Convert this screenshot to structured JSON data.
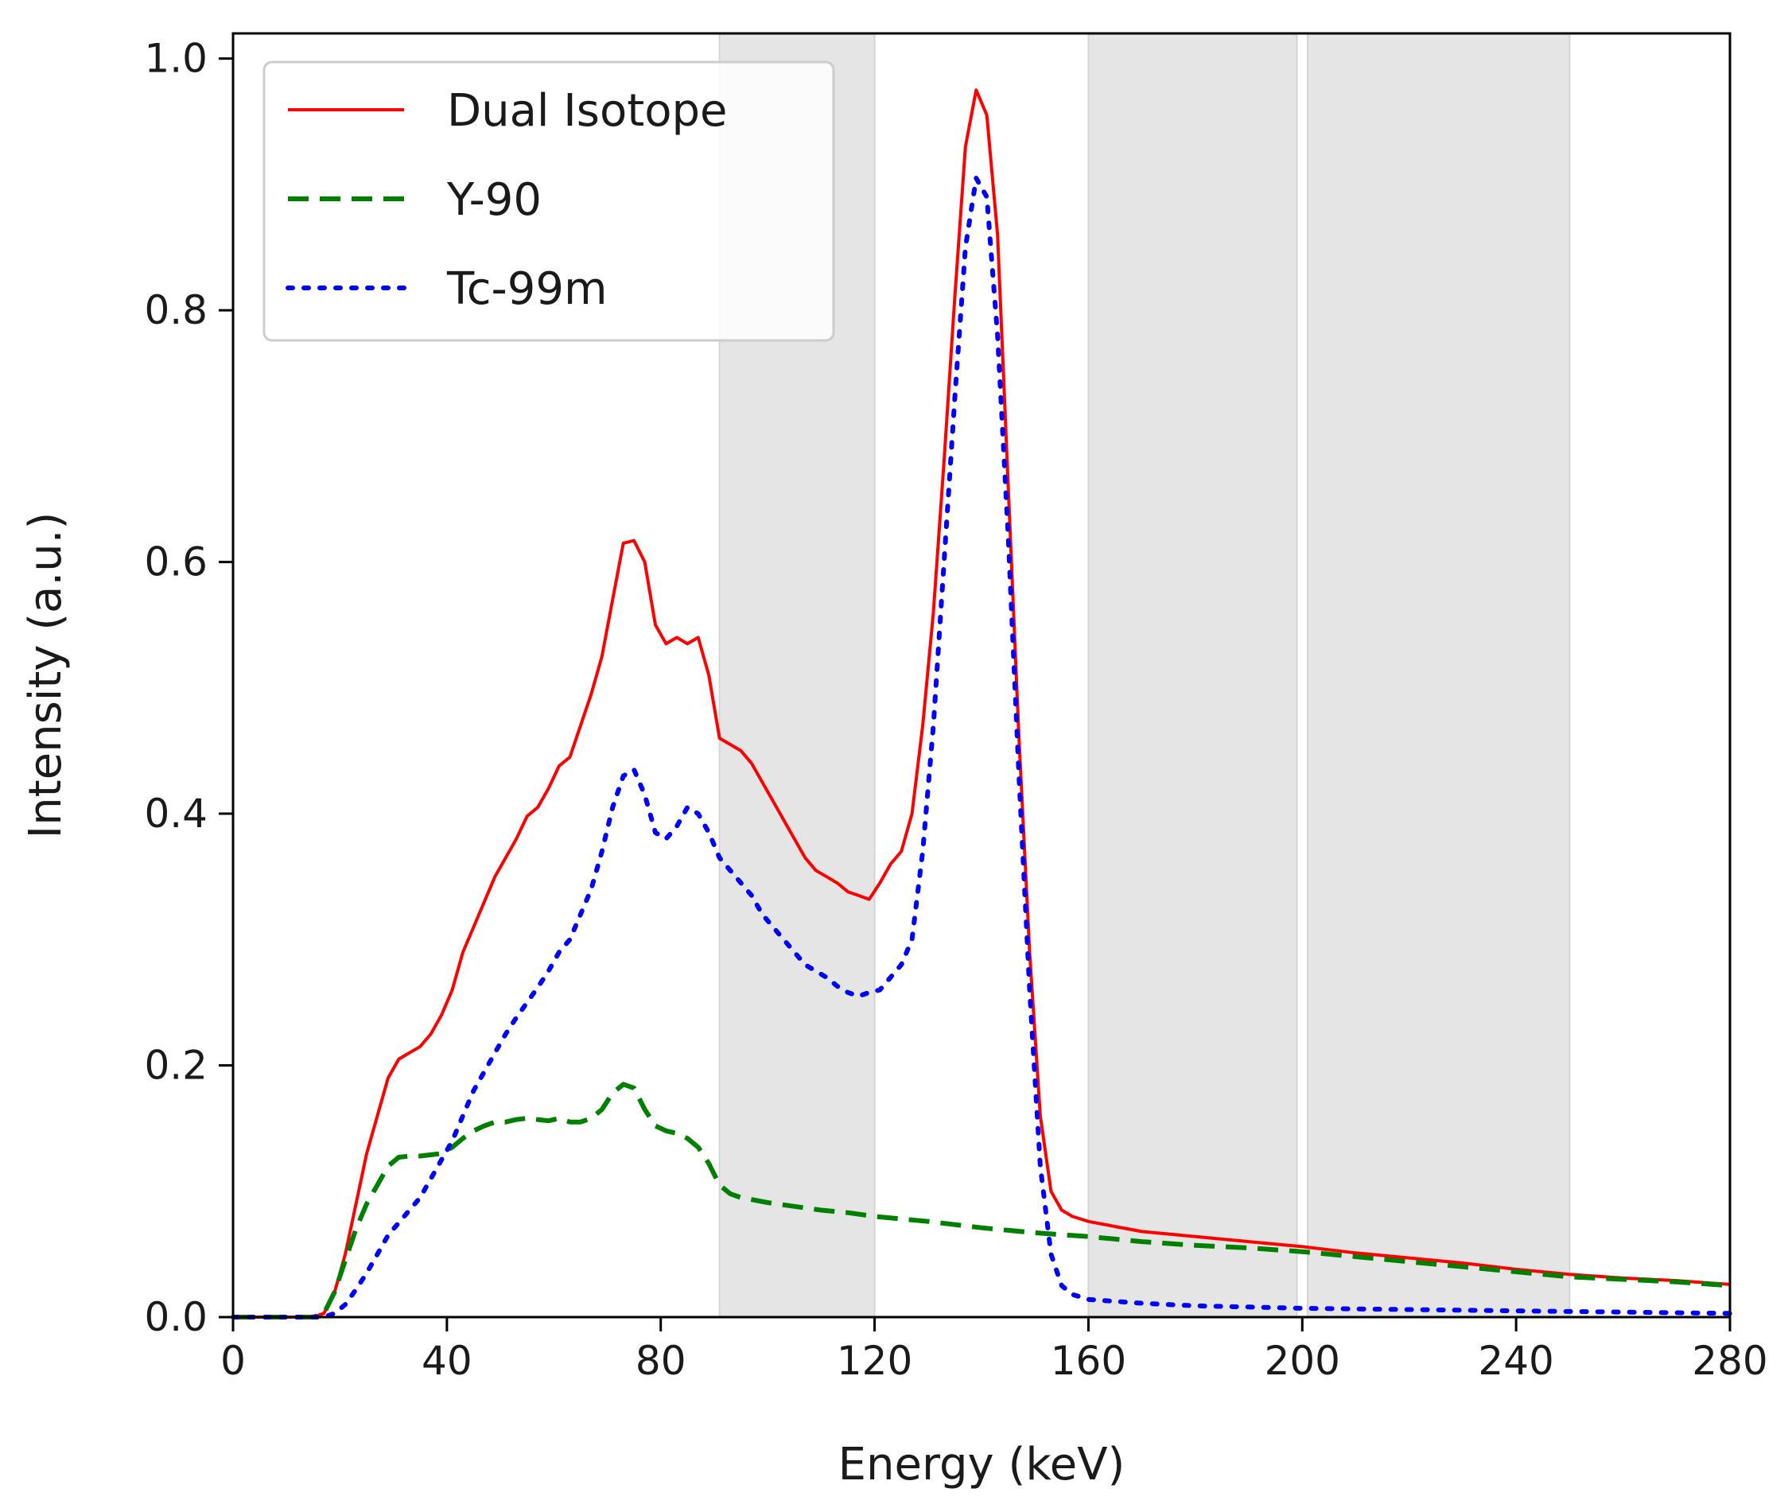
{
  "chart_data": {
    "type": "line",
    "title": "",
    "xlabel": "Energy (keV)",
    "ylabel": "Intensity (a.u.)",
    "xlim": [
      0,
      280
    ],
    "ylim": [
      0,
      1.02
    ],
    "xticks": [
      0,
      40,
      80,
      120,
      160,
      200,
      240,
      280
    ],
    "xtick_labels": [
      "0",
      "40",
      "80",
      "120",
      "160",
      "200",
      "240",
      "280"
    ],
    "yticks": [
      0.0,
      0.2,
      0.4,
      0.6,
      0.8,
      1.0
    ],
    "ytick_labels": [
      "0.0",
      "0.2",
      "0.4",
      "0.6",
      "0.8",
      "1.0"
    ],
    "grid": false,
    "legend_position": "top-left",
    "shaded_bands": [
      {
        "x0": 91,
        "x1": 120
      },
      {
        "x0": 160,
        "x1": 199
      },
      {
        "x0": 201,
        "x1": 250
      }
    ],
    "series": [
      {
        "name": "Dual Isotope",
        "color": "#ff0000",
        "style": "solid",
        "points": [
          [
            0,
            0
          ],
          [
            15,
            0
          ],
          [
            17,
            0.003
          ],
          [
            19,
            0.02
          ],
          [
            21,
            0.05
          ],
          [
            23,
            0.09
          ],
          [
            25,
            0.13
          ],
          [
            27,
            0.16
          ],
          [
            29,
            0.19
          ],
          [
            31,
            0.205
          ],
          [
            33,
            0.21
          ],
          [
            35,
            0.215
          ],
          [
            37,
            0.225
          ],
          [
            39,
            0.24
          ],
          [
            41,
            0.26
          ],
          [
            43,
            0.29
          ],
          [
            45,
            0.31
          ],
          [
            47,
            0.33
          ],
          [
            49,
            0.35
          ],
          [
            51,
            0.365
          ],
          [
            53,
            0.38
          ],
          [
            55,
            0.398
          ],
          [
            57,
            0.405
          ],
          [
            59,
            0.42
          ],
          [
            61,
            0.438
          ],
          [
            63,
            0.445
          ],
          [
            65,
            0.47
          ],
          [
            67,
            0.495
          ],
          [
            69,
            0.525
          ],
          [
            71,
            0.57
          ],
          [
            73,
            0.615
          ],
          [
            75,
            0.617
          ],
          [
            77,
            0.6
          ],
          [
            79,
            0.55
          ],
          [
            81,
            0.535
          ],
          [
            83,
            0.54
          ],
          [
            85,
            0.535
          ],
          [
            87,
            0.54
          ],
          [
            89,
            0.51
          ],
          [
            91,
            0.46
          ],
          [
            93,
            0.455
          ],
          [
            95,
            0.45
          ],
          [
            97,
            0.44
          ],
          [
            99,
            0.425
          ],
          [
            101,
            0.41
          ],
          [
            103,
            0.395
          ],
          [
            105,
            0.38
          ],
          [
            107,
            0.365
          ],
          [
            109,
            0.355
          ],
          [
            111,
            0.35
          ],
          [
            113,
            0.345
          ],
          [
            115,
            0.338
          ],
          [
            117,
            0.335
          ],
          [
            119,
            0.332
          ],
          [
            121,
            0.345
          ],
          [
            123,
            0.36
          ],
          [
            125,
            0.37
          ],
          [
            127,
            0.4
          ],
          [
            129,
            0.47
          ],
          [
            131,
            0.56
          ],
          [
            133,
            0.68
          ],
          [
            135,
            0.81
          ],
          [
            137,
            0.93
          ],
          [
            139,
            0.975
          ],
          [
            141,
            0.955
          ],
          [
            143,
            0.86
          ],
          [
            145,
            0.66
          ],
          [
            147,
            0.46
          ],
          [
            149,
            0.29
          ],
          [
            151,
            0.16
          ],
          [
            153,
            0.1
          ],
          [
            155,
            0.085
          ],
          [
            157,
            0.08
          ],
          [
            160,
            0.076
          ],
          [
            165,
            0.072
          ],
          [
            170,
            0.068
          ],
          [
            180,
            0.064
          ],
          [
            190,
            0.06
          ],
          [
            200,
            0.056
          ],
          [
            210,
            0.051
          ],
          [
            220,
            0.047
          ],
          [
            230,
            0.043
          ],
          [
            240,
            0.038
          ],
          [
            250,
            0.034
          ],
          [
            260,
            0.031
          ],
          [
            270,
            0.029
          ],
          [
            280,
            0.026
          ]
        ]
      },
      {
        "name": "Y-90",
        "color": "#008000",
        "style": "dashed",
        "points": [
          [
            0,
            0
          ],
          [
            15,
            0
          ],
          [
            17,
            0.003
          ],
          [
            19,
            0.02
          ],
          [
            21,
            0.045
          ],
          [
            23,
            0.07
          ],
          [
            25,
            0.09
          ],
          [
            27,
            0.105
          ],
          [
            29,
            0.12
          ],
          [
            31,
            0.127
          ],
          [
            33,
            0.128
          ],
          [
            35,
            0.128
          ],
          [
            37,
            0.129
          ],
          [
            39,
            0.13
          ],
          [
            41,
            0.135
          ],
          [
            43,
            0.142
          ],
          [
            45,
            0.148
          ],
          [
            47,
            0.152
          ],
          [
            49,
            0.155
          ],
          [
            51,
            0.155
          ],
          [
            53,
            0.157
          ],
          [
            55,
            0.158
          ],
          [
            57,
            0.157
          ],
          [
            59,
            0.156
          ],
          [
            61,
            0.158
          ],
          [
            63,
            0.155
          ],
          [
            65,
            0.155
          ],
          [
            67,
            0.158
          ],
          [
            69,
            0.165
          ],
          [
            71,
            0.178
          ],
          [
            73,
            0.185
          ],
          [
            75,
            0.182
          ],
          [
            77,
            0.165
          ],
          [
            79,
            0.152
          ],
          [
            81,
            0.148
          ],
          [
            83,
            0.146
          ],
          [
            85,
            0.142
          ],
          [
            87,
            0.135
          ],
          [
            89,
            0.122
          ],
          [
            91,
            0.105
          ],
          [
            93,
            0.098
          ],
          [
            95,
            0.095
          ],
          [
            100,
            0.091
          ],
          [
            105,
            0.088
          ],
          [
            110,
            0.085
          ],
          [
            115,
            0.083
          ],
          [
            120,
            0.08
          ],
          [
            130,
            0.076
          ],
          [
            140,
            0.071
          ],
          [
            150,
            0.067
          ],
          [
            160,
            0.064
          ],
          [
            170,
            0.06
          ],
          [
            180,
            0.057
          ],
          [
            190,
            0.055
          ],
          [
            200,
            0.052
          ],
          [
            210,
            0.048
          ],
          [
            220,
            0.044
          ],
          [
            230,
            0.04
          ],
          [
            240,
            0.036
          ],
          [
            250,
            0.032
          ],
          [
            260,
            0.03
          ],
          [
            270,
            0.028
          ],
          [
            280,
            0.025
          ]
        ]
      },
      {
        "name": "Tc-99m",
        "color": "#0000ff",
        "style": "dotted",
        "points": [
          [
            0,
            0
          ],
          [
            17,
            0
          ],
          [
            19,
            0.003
          ],
          [
            21,
            0.01
          ],
          [
            23,
            0.022
          ],
          [
            25,
            0.035
          ],
          [
            27,
            0.05
          ],
          [
            29,
            0.065
          ],
          [
            31,
            0.075
          ],
          [
            33,
            0.085
          ],
          [
            35,
            0.095
          ],
          [
            37,
            0.11
          ],
          [
            39,
            0.125
          ],
          [
            41,
            0.14
          ],
          [
            43,
            0.16
          ],
          [
            45,
            0.18
          ],
          [
            47,
            0.195
          ],
          [
            49,
            0.21
          ],
          [
            51,
            0.225
          ],
          [
            53,
            0.238
          ],
          [
            55,
            0.25
          ],
          [
            57,
            0.262
          ],
          [
            59,
            0.275
          ],
          [
            61,
            0.29
          ],
          [
            63,
            0.3
          ],
          [
            65,
            0.32
          ],
          [
            67,
            0.34
          ],
          [
            69,
            0.37
          ],
          [
            71,
            0.405
          ],
          [
            73,
            0.43
          ],
          [
            75,
            0.435
          ],
          [
            77,
            0.415
          ],
          [
            79,
            0.385
          ],
          [
            81,
            0.38
          ],
          [
            83,
            0.39
          ],
          [
            85,
            0.405
          ],
          [
            87,
            0.4
          ],
          [
            89,
            0.385
          ],
          [
            91,
            0.365
          ],
          [
            93,
            0.355
          ],
          [
            95,
            0.345
          ],
          [
            97,
            0.335
          ],
          [
            99,
            0.32
          ],
          [
            101,
            0.31
          ],
          [
            103,
            0.3
          ],
          [
            105,
            0.29
          ],
          [
            107,
            0.28
          ],
          [
            109,
            0.275
          ],
          [
            111,
            0.27
          ],
          [
            113,
            0.263
          ],
          [
            115,
            0.258
          ],
          [
            117,
            0.255
          ],
          [
            119,
            0.258
          ],
          [
            121,
            0.26
          ],
          [
            123,
            0.27
          ],
          [
            125,
            0.28
          ],
          [
            127,
            0.3
          ],
          [
            129,
            0.37
          ],
          [
            131,
            0.47
          ],
          [
            133,
            0.6
          ],
          [
            135,
            0.73
          ],
          [
            137,
            0.85
          ],
          [
            139,
            0.905
          ],
          [
            141,
            0.89
          ],
          [
            143,
            0.78
          ],
          [
            145,
            0.62
          ],
          [
            147,
            0.43
          ],
          [
            149,
            0.26
          ],
          [
            151,
            0.12
          ],
          [
            153,
            0.05
          ],
          [
            155,
            0.025
          ],
          [
            157,
            0.018
          ],
          [
            160,
            0.014
          ],
          [
            170,
            0.011
          ],
          [
            180,
            0.009
          ],
          [
            190,
            0.008
          ],
          [
            200,
            0.007
          ],
          [
            220,
            0.006
          ],
          [
            240,
            0.005
          ],
          [
            260,
            0.004
          ],
          [
            280,
            0.003
          ]
        ]
      }
    ]
  }
}
